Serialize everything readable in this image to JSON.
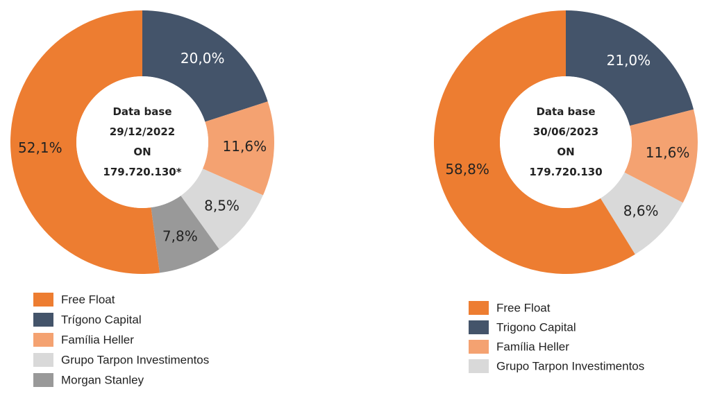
{
  "chart_data": [
    {
      "type": "pie",
      "categories": [
        "Free Float",
        "Trígono Capital",
        "Família Heller",
        "Grupo Tarpon Investimentos",
        "Morgan Stanley"
      ],
      "values": [
        52.1,
        20.0,
        11.6,
        8.5,
        7.8
      ],
      "value_labels": [
        "52,1%",
        "20,0%",
        "11,6%",
        "8,5%",
        "7,8%"
      ],
      "colors": [
        "#ed7d31",
        "#44546a",
        "#f4a271",
        "#d9d9d9",
        "#999999"
      ],
      "center_text": [
        "Data base",
        "29/12/2022",
        "ON",
        "179.720.130*"
      ]
    },
    {
      "type": "pie",
      "categories": [
        "Free Float",
        "Trigono Capital",
        "Família Heller",
        "Grupo Tarpon Investimentos"
      ],
      "values": [
        58.8,
        21.0,
        11.6,
        8.6
      ],
      "value_labels": [
        "58,8%",
        "21,0%",
        "11,6%",
        "8,6%"
      ],
      "colors": [
        "#ed7d31",
        "#44546a",
        "#f4a271",
        "#d9d9d9"
      ],
      "center_text": [
        "Data base",
        "30/06/2023",
        "ON",
        "179.720.130"
      ]
    }
  ]
}
